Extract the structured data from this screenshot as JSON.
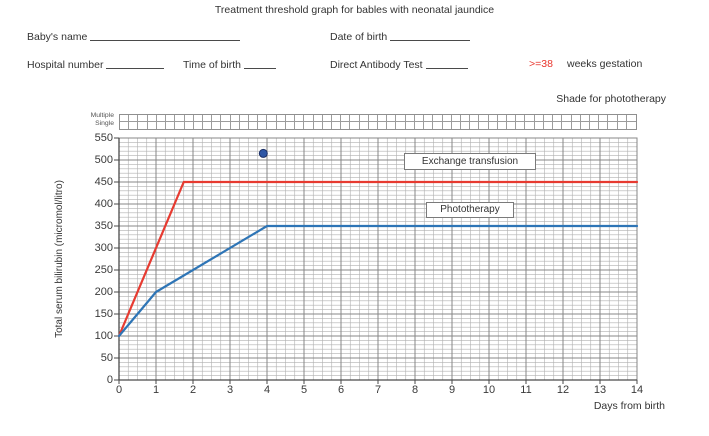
{
  "title": "Treatment threshold graph for bables with neonatal jaundice",
  "form": {
    "babys_name_label": "Baby's name",
    "date_of_birth_label": "Date of birth",
    "hospital_number_label": "Hospital number",
    "time_of_birth_label": "Time of birth",
    "direct_antibody_label": "Direct Antibody Test",
    "gestation_value": ">=38",
    "gestation_label": "weeks gestation",
    "gestation_value_color": "#e8342b"
  },
  "annotations": {
    "shade_note": "Shade for phototherapy",
    "strip_row_labels": [
      "Multiple",
      "Single"
    ],
    "strip_columns": 56
  },
  "chart_data": {
    "type": "line",
    "title": "",
    "xlabel": "Days from birth",
    "ylabel": "Total serum bilirubin (micromol/litro)",
    "xlim": [
      0,
      14
    ],
    "ylim": [
      0,
      550
    ],
    "x_ticks": [
      0,
      1,
      2,
      3,
      4,
      5,
      6,
      7,
      8,
      9,
      10,
      11,
      12,
      13,
      14
    ],
    "y_ticks": [
      0,
      50,
      100,
      150,
      200,
      250,
      300,
      350,
      400,
      450,
      500,
      550
    ],
    "grid": {
      "on": true,
      "minor_x": 0.25,
      "major_x": 1,
      "minor_y": 10,
      "major_y": 50,
      "minor_color": "#b0b0b0",
      "major_color": "#878787",
      "axis_color": "#4a4a4a"
    },
    "legend_position": "inside-right-above-lines",
    "series": [
      {
        "name": "Exchange transfusion",
        "color": "#e73b31",
        "points": [
          [
            0,
            100
          ],
          [
            1.75,
            450
          ],
          [
            14,
            450
          ]
        ]
      },
      {
        "name": "Phototherapy",
        "color": "#2e75b6",
        "points": [
          [
            0,
            100
          ],
          [
            1,
            200
          ],
          [
            4,
            350
          ],
          [
            14,
            350
          ]
        ]
      }
    ],
    "markers": [
      {
        "name": "plotted-measurement",
        "x": 3.9,
        "y": 515,
        "color": "#2d56a5",
        "edge_color": "#1b2f66",
        "radius": 4
      }
    ]
  }
}
